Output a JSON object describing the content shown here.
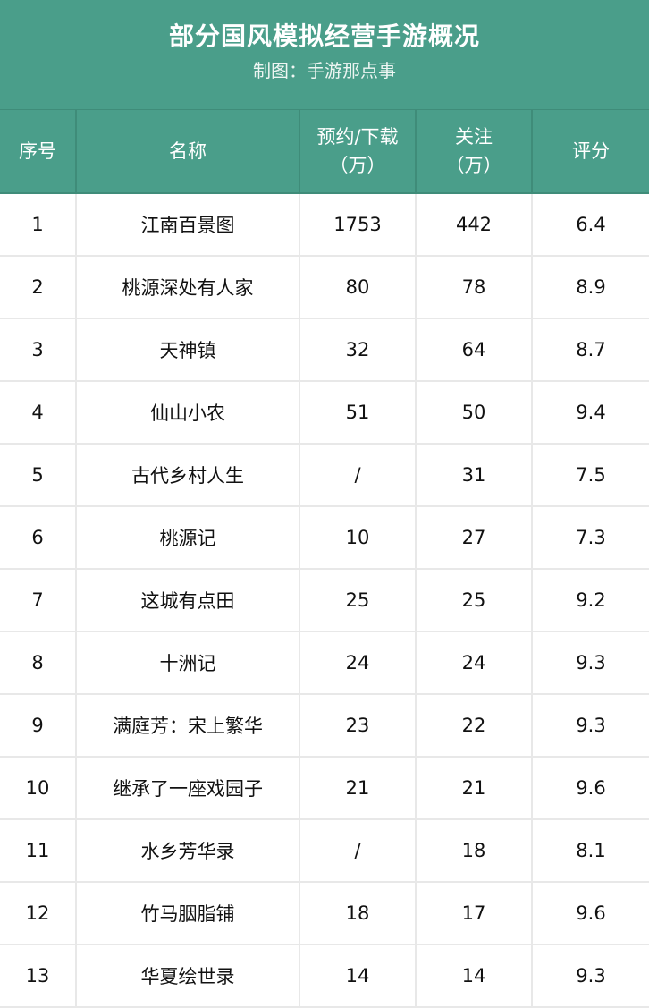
{
  "header": {
    "title": "部分国风模拟经营手游概况",
    "subtitle": "制图：手游那点事"
  },
  "colors": {
    "header_bg": "#4a9e8a",
    "header_text": "#ffffff"
  },
  "columns": [
    {
      "line1": "序号",
      "line2": ""
    },
    {
      "line1": "名称",
      "line2": ""
    },
    {
      "line1": "预约/下载",
      "line2": "（万）"
    },
    {
      "line1": "关注",
      "line2": "（万）"
    },
    {
      "line1": "评分",
      "line2": ""
    }
  ],
  "rows": [
    [
      "1",
      "江南百景图",
      "1753",
      "442",
      "6.4"
    ],
    [
      "2",
      "桃源深处有人家",
      "80",
      "78",
      "8.9"
    ],
    [
      "3",
      "天神镇",
      "32",
      "64",
      "8.7"
    ],
    [
      "4",
      "仙山小农",
      "51",
      "50",
      "9.4"
    ],
    [
      "5",
      "古代乡村人生",
      "/",
      "31",
      "7.5"
    ],
    [
      "6",
      "桃源记",
      "10",
      "27",
      "7.3"
    ],
    [
      "7",
      "这城有点田",
      "25",
      "25",
      "9.2"
    ],
    [
      "8",
      "十洲记",
      "24",
      "24",
      "9.3"
    ],
    [
      "9",
      "满庭芳：宋上繁华",
      "23",
      "22",
      "9.3"
    ],
    [
      "10",
      "继承了一座戏园子",
      "21",
      "21",
      "9.6"
    ],
    [
      "11",
      "水乡芳华录",
      "/",
      "18",
      "8.1"
    ],
    [
      "12",
      "竹马胭脂铺",
      "18",
      "17",
      "9.6"
    ],
    [
      "13",
      "华夏绘世录",
      "14",
      "14",
      "9.3"
    ]
  ]
}
